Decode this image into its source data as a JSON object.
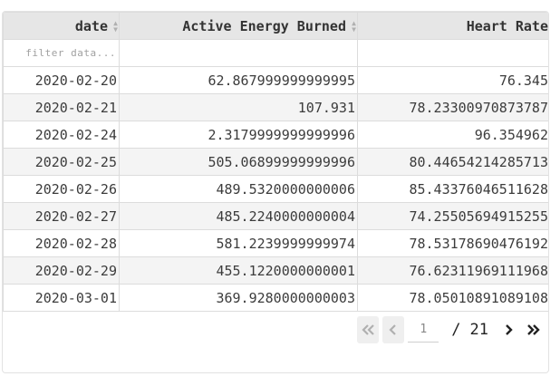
{
  "table": {
    "columns": [
      {
        "label": "date"
      },
      {
        "label": "Active Energy Burned"
      },
      {
        "label": "Heart Rate"
      }
    ],
    "filter_placeholder": "filter data...",
    "rows": [
      [
        "2020-02-20",
        "62.867999999999995",
        "76.345"
      ],
      [
        "2020-02-21",
        "107.931",
        "78.23300970873787"
      ],
      [
        "2020-02-24",
        "2.3179999999999996",
        "96.354962"
      ],
      [
        "2020-02-25",
        "505.06899999999996",
        "80.44654214285713"
      ],
      [
        "2020-02-26",
        "489.5320000000006",
        "85.43376046511628"
      ],
      [
        "2020-02-27",
        "485.2240000000004",
        "74.25505694915255"
      ],
      [
        "2020-02-28",
        "581.2239999999974",
        "78.53178690476192"
      ],
      [
        "2020-02-29",
        "455.1220000000001",
        "76.62311969111968"
      ],
      [
        "2020-03-01",
        "369.9280000000003",
        "78.05010891089108"
      ]
    ]
  },
  "pagination": {
    "current_page": "1",
    "separator": "/",
    "total_pages": "21",
    "first_icon": "double-chevron-left-icon",
    "prev_icon": "chevron-left-icon",
    "next_icon": "chevron-right-icon",
    "last_icon": "double-chevron-right-icon"
  }
}
